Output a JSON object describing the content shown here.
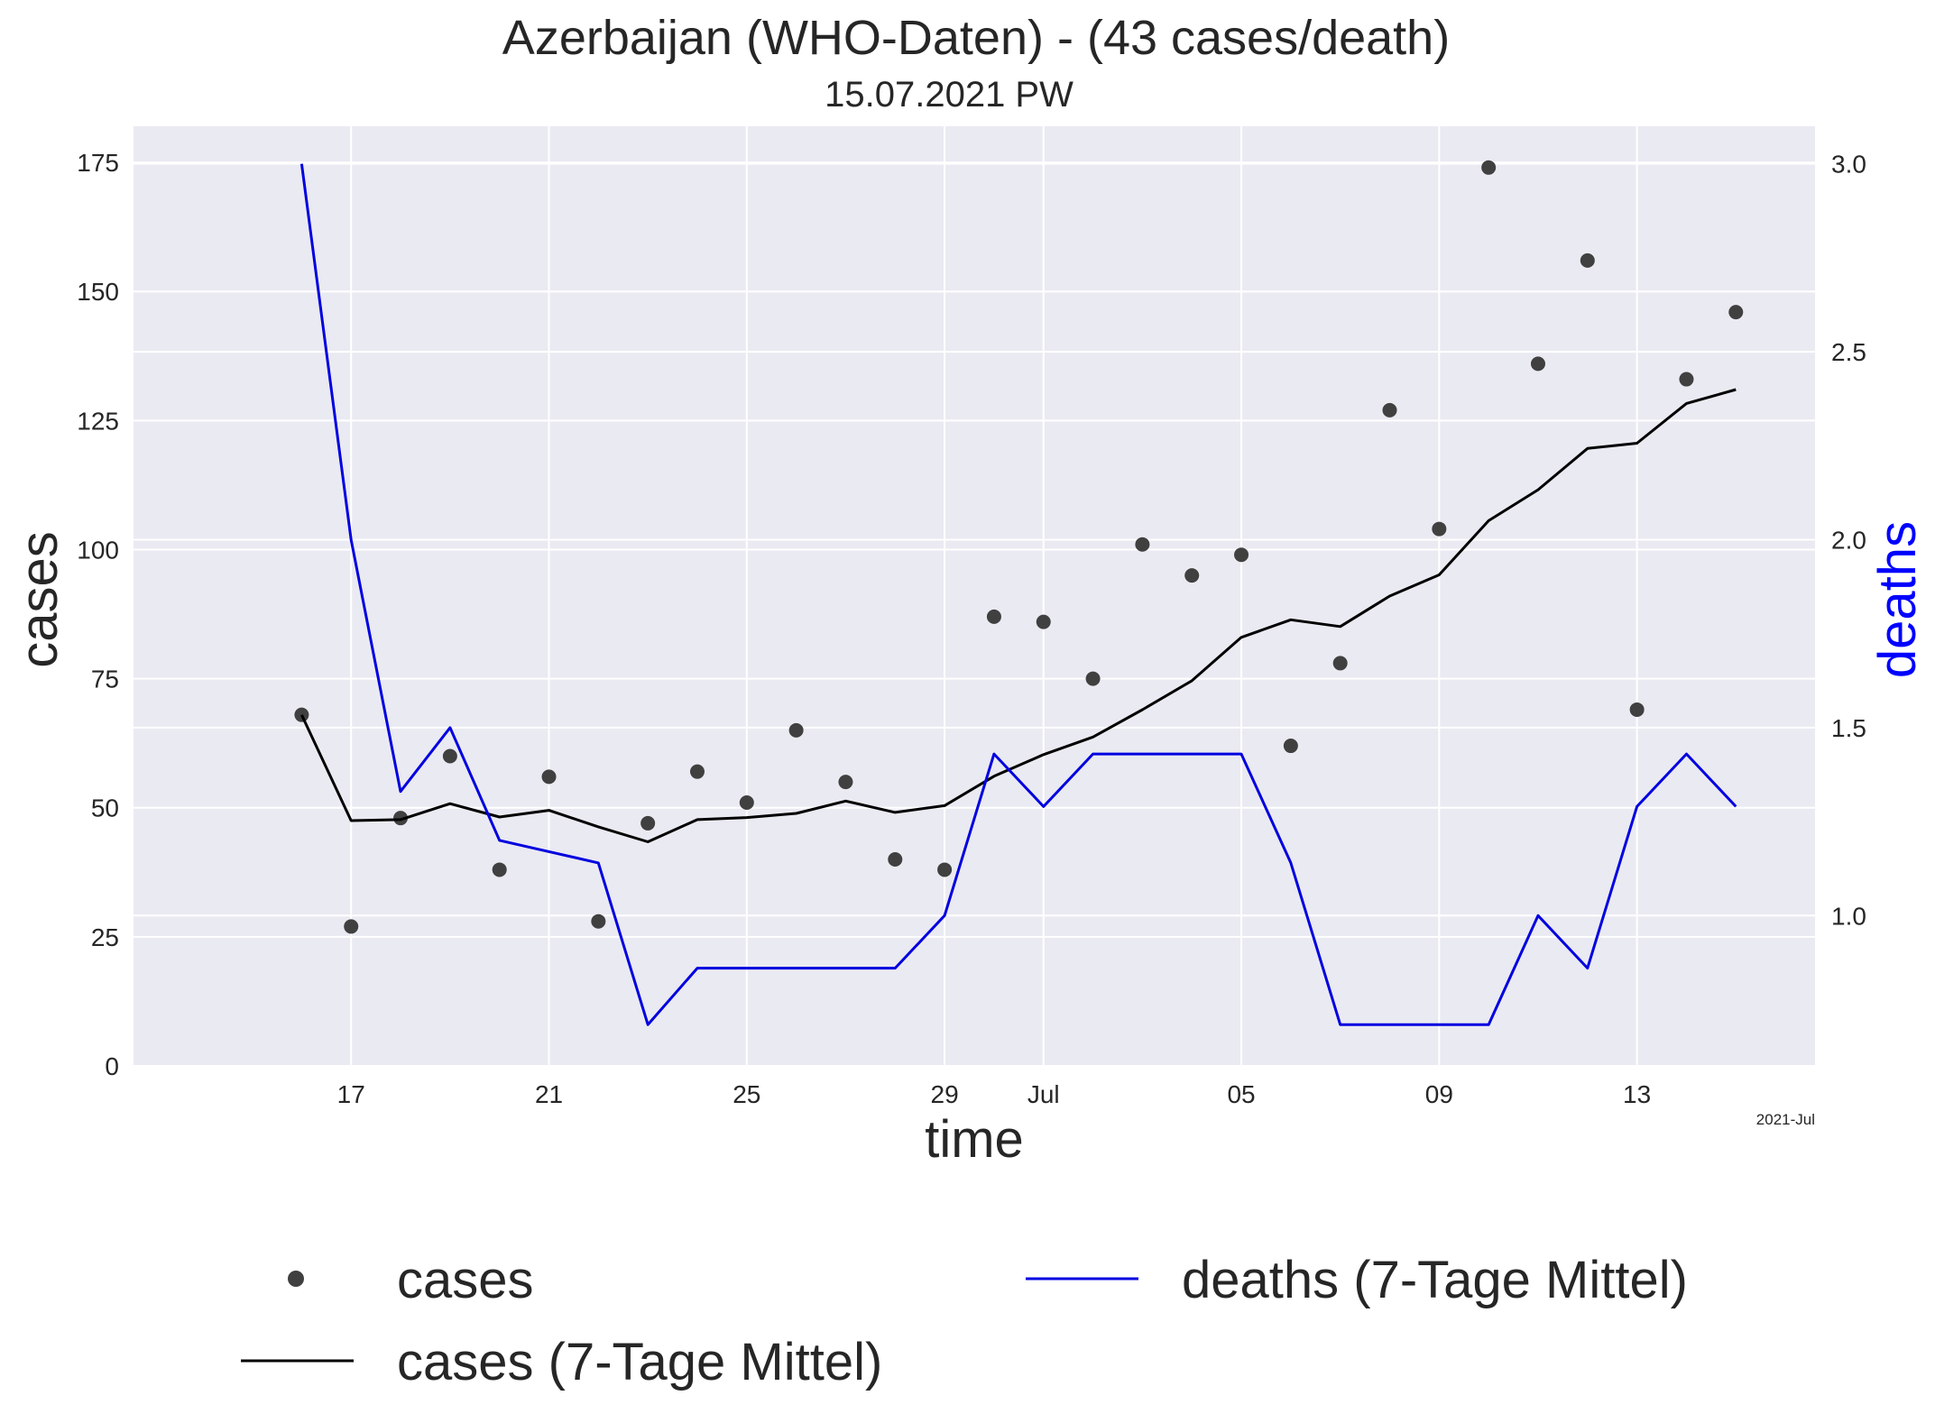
{
  "chart_data": {
    "type": "line",
    "title": "Azerbaijan (WHO-Daten) - (43 cases/death)",
    "subtitle": "15.07.2021 PW",
    "xlabel": "time",
    "ylabel": "cases",
    "y2label": "deaths",
    "corner_label": "2021-Jul",
    "x_start_day": 16,
    "x_ticks": [
      {
        "day": 17,
        "label": "17"
      },
      {
        "day": 21,
        "label": "21"
      },
      {
        "day": 25,
        "label": "25"
      },
      {
        "day": 29,
        "label": "29"
      },
      {
        "day": 31,
        "label": "Jul"
      },
      {
        "day": 35,
        "label": "05"
      },
      {
        "day": 39,
        "label": "09"
      },
      {
        "day": 43,
        "label": "13"
      }
    ],
    "xlim": [
      12.6,
      46.6
    ],
    "ylim": [
      0,
      182
    ],
    "y_ticks": [
      0,
      25,
      50,
      75,
      100,
      125,
      150,
      175
    ],
    "y2lim": [
      0.6,
      3.1
    ],
    "y2_ticks": [
      "1.0",
      "1.5",
      "2.0",
      "2.5",
      "3.0"
    ],
    "grid": true,
    "colors": {
      "cases": "#404040",
      "cases_avg": "#000000",
      "deaths_avg": "#0000e0",
      "background": "#eaeaf2",
      "grid": "#ffffff",
      "deaths_label": "#0000ff"
    },
    "x_dates": [
      "16.06.2021",
      "17.06.2021",
      "18.06.2021",
      "19.06.2021",
      "20.06.2021",
      "21.06.2021",
      "22.06.2021",
      "23.06.2021",
      "24.06.2021",
      "25.06.2021",
      "26.06.2021",
      "27.06.2021",
      "28.06.2021",
      "29.06.2021",
      "30.06.2021",
      "01.07.2021",
      "02.07.2021",
      "03.07.2021",
      "04.07.2021",
      "05.07.2021",
      "06.07.2021",
      "07.07.2021",
      "08.07.2021",
      "09.07.2021",
      "10.07.2021",
      "11.07.2021",
      "12.07.2021",
      "13.07.2021",
      "14.07.2021",
      "15.07.2021"
    ],
    "series": [
      {
        "name": "cases",
        "style": "scatter",
        "axis": "left",
        "values": [
          68,
          27,
          48,
          60,
          38,
          56,
          28,
          47,
          57,
          51,
          65,
          55,
          40,
          38,
          87,
          86,
          75,
          101,
          95,
          99,
          62,
          78,
          127,
          104,
          174,
          136,
          156,
          69,
          133,
          146
        ]
      },
      {
        "name": "cases (7-Tage Mittel)",
        "style": "line",
        "axis": "left",
        "values": [
          68,
          47.5,
          47.7,
          50.8,
          48.2,
          49.5,
          46.3,
          43.4,
          47.7,
          48.1,
          48.9,
          51.3,
          49.1,
          50.4,
          56.1,
          60.3,
          63.7,
          69,
          74.6,
          83,
          86.4,
          85.1,
          91,
          95.1,
          105.6,
          111.6,
          119.6,
          120.6,
          128.3,
          131
        ]
      },
      {
        "name": "deaths (7-Tage Mittel)",
        "style": "line",
        "axis": "right",
        "values": [
          3.0,
          2.0,
          1.33,
          1.5,
          1.2,
          1.17,
          1.14,
          0.71,
          0.86,
          0.86,
          0.86,
          0.86,
          0.86,
          1.0,
          1.43,
          1.29,
          1.43,
          1.43,
          1.43,
          1.43,
          1.14,
          0.71,
          0.71,
          0.71,
          0.71,
          1.0,
          0.86,
          1.29,
          1.43,
          1.29
        ]
      }
    ],
    "legend": {
      "placement": "bottom",
      "entries": [
        "cases",
        "cases (7-Tage Mittel)",
        "deaths (7-Tage Mittel)"
      ]
    }
  }
}
